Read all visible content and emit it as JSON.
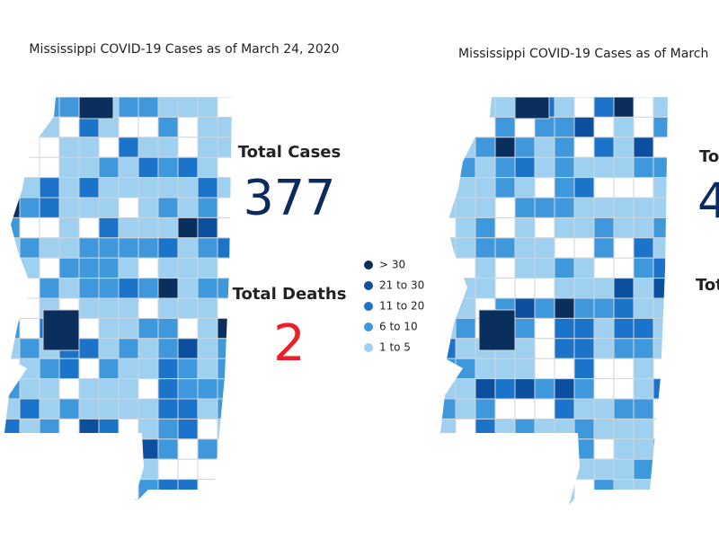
{
  "left_panel": {
    "title": "Mississippi COVID-19 Cases as of March 24, 2020",
    "total_cases_label": "Total Cases",
    "total_cases": "377",
    "total_deaths_label": "Total Deaths",
    "total_deaths": "2"
  },
  "legend": [
    {
      "label": "> 30",
      "color": "#0b2f5c"
    },
    {
      "label": "21 to 30",
      "color": "#0b4f9e"
    },
    {
      "label": "11 to 20",
      "color": "#1b74c9"
    },
    {
      "label": "6 to 10",
      "color": "#3f98dc"
    },
    {
      "label": "1 to 5",
      "color": "#9fd0f0"
    }
  ],
  "right_panel": {
    "title": "Mississippi COVID-19 Cases as of March",
    "total_cases_label": "To",
    "total_cases": "4",
    "total_deaths_label": "Tot"
  }
}
